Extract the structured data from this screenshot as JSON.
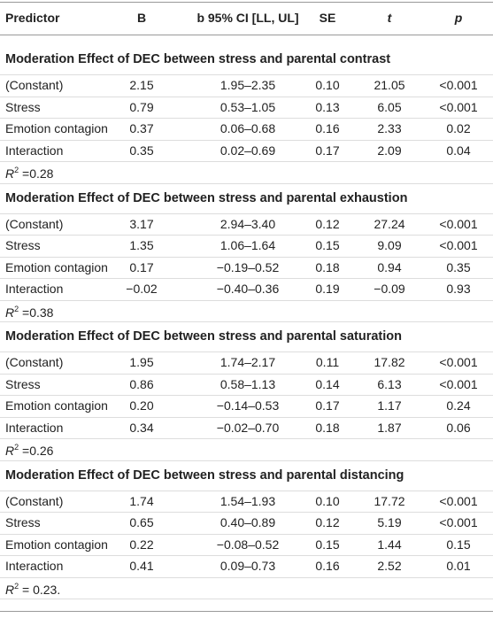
{
  "header": {
    "columns": [
      "Predictor",
      "B",
      "b 95% CI [LL, UL]",
      "SE",
      "t",
      "p"
    ]
  },
  "sections": [
    {
      "title": "Moderation Effect of DEC between stress and parental contrast",
      "rows": [
        [
          "(Constant)",
          "2.15",
          "1.95–2.35",
          "0.10",
          "21.05",
          "<0.001"
        ],
        [
          "Stress",
          "0.79",
          "0.53–1.05",
          "0.13",
          "6.05",
          "<0.001"
        ],
        [
          "Emotion contagion",
          "0.37",
          "0.06–0.68",
          "0.16",
          "2.33",
          "0.02"
        ],
        [
          "Interaction",
          "0.35",
          "0.02–0.69",
          "0.17",
          "2.09",
          "0.04"
        ]
      ],
      "r2": {
        "symbol": "R",
        "sup": "2",
        "text": " =0.28"
      }
    },
    {
      "title": "Moderation Effect of DEC between stress and parental exhaustion",
      "rows": [
        [
          "(Constant)",
          "3.17",
          "2.94–3.40",
          "0.12",
          "27.24",
          "<0.001"
        ],
        [
          "Stress",
          "1.35",
          "1.06–1.64",
          "0.15",
          "9.09",
          "<0.001"
        ],
        [
          "Emotion contagion",
          "0.17",
          "−0.19–0.52",
          "0.18",
          "0.94",
          "0.35"
        ],
        [
          "Interaction",
          "−0.02",
          "−0.40–0.36",
          "0.19",
          "−0.09",
          "0.93"
        ]
      ],
      "r2": {
        "symbol": "R",
        "sup": "2",
        "text": " =0.38"
      }
    },
    {
      "title": "Moderation Effect of DEC between stress and parental saturation",
      "rows": [
        [
          "(Constant)",
          "1.95",
          "1.74–2.17",
          "0.11",
          "17.82",
          "<0.001"
        ],
        [
          "Stress",
          "0.86",
          "0.58–1.13",
          "0.14",
          "6.13",
          "<0.001"
        ],
        [
          "Emotion contagion",
          "0.20",
          "−0.14–0.53",
          "0.17",
          "1.17",
          "0.24"
        ],
        [
          "Interaction",
          "0.34",
          "−0.02–0.70",
          "0.18",
          "1.87",
          "0.06"
        ]
      ],
      "r2": {
        "symbol": "R",
        "sup": "2",
        "text": " =0.26"
      }
    },
    {
      "title": "Moderation Effect of DEC between stress and parental distancing",
      "rows": [
        [
          "(Constant)",
          "1.74",
          "1.54–1.93",
          "0.10",
          "17.72",
          "<0.001"
        ],
        [
          "Stress",
          "0.65",
          "0.40–0.89",
          "0.12",
          "5.19",
          "<0.001"
        ],
        [
          "Emotion contagion",
          "0.22",
          "−0.08–0.52",
          "0.15",
          "1.44",
          "0.15"
        ],
        [
          "Interaction",
          "0.41",
          "0.09–0.73",
          "0.16",
          "2.52",
          "0.01"
        ]
      ],
      "r2": {
        "symbol": "R",
        "sup": "2",
        "text": " = 0.23."
      }
    }
  ]
}
